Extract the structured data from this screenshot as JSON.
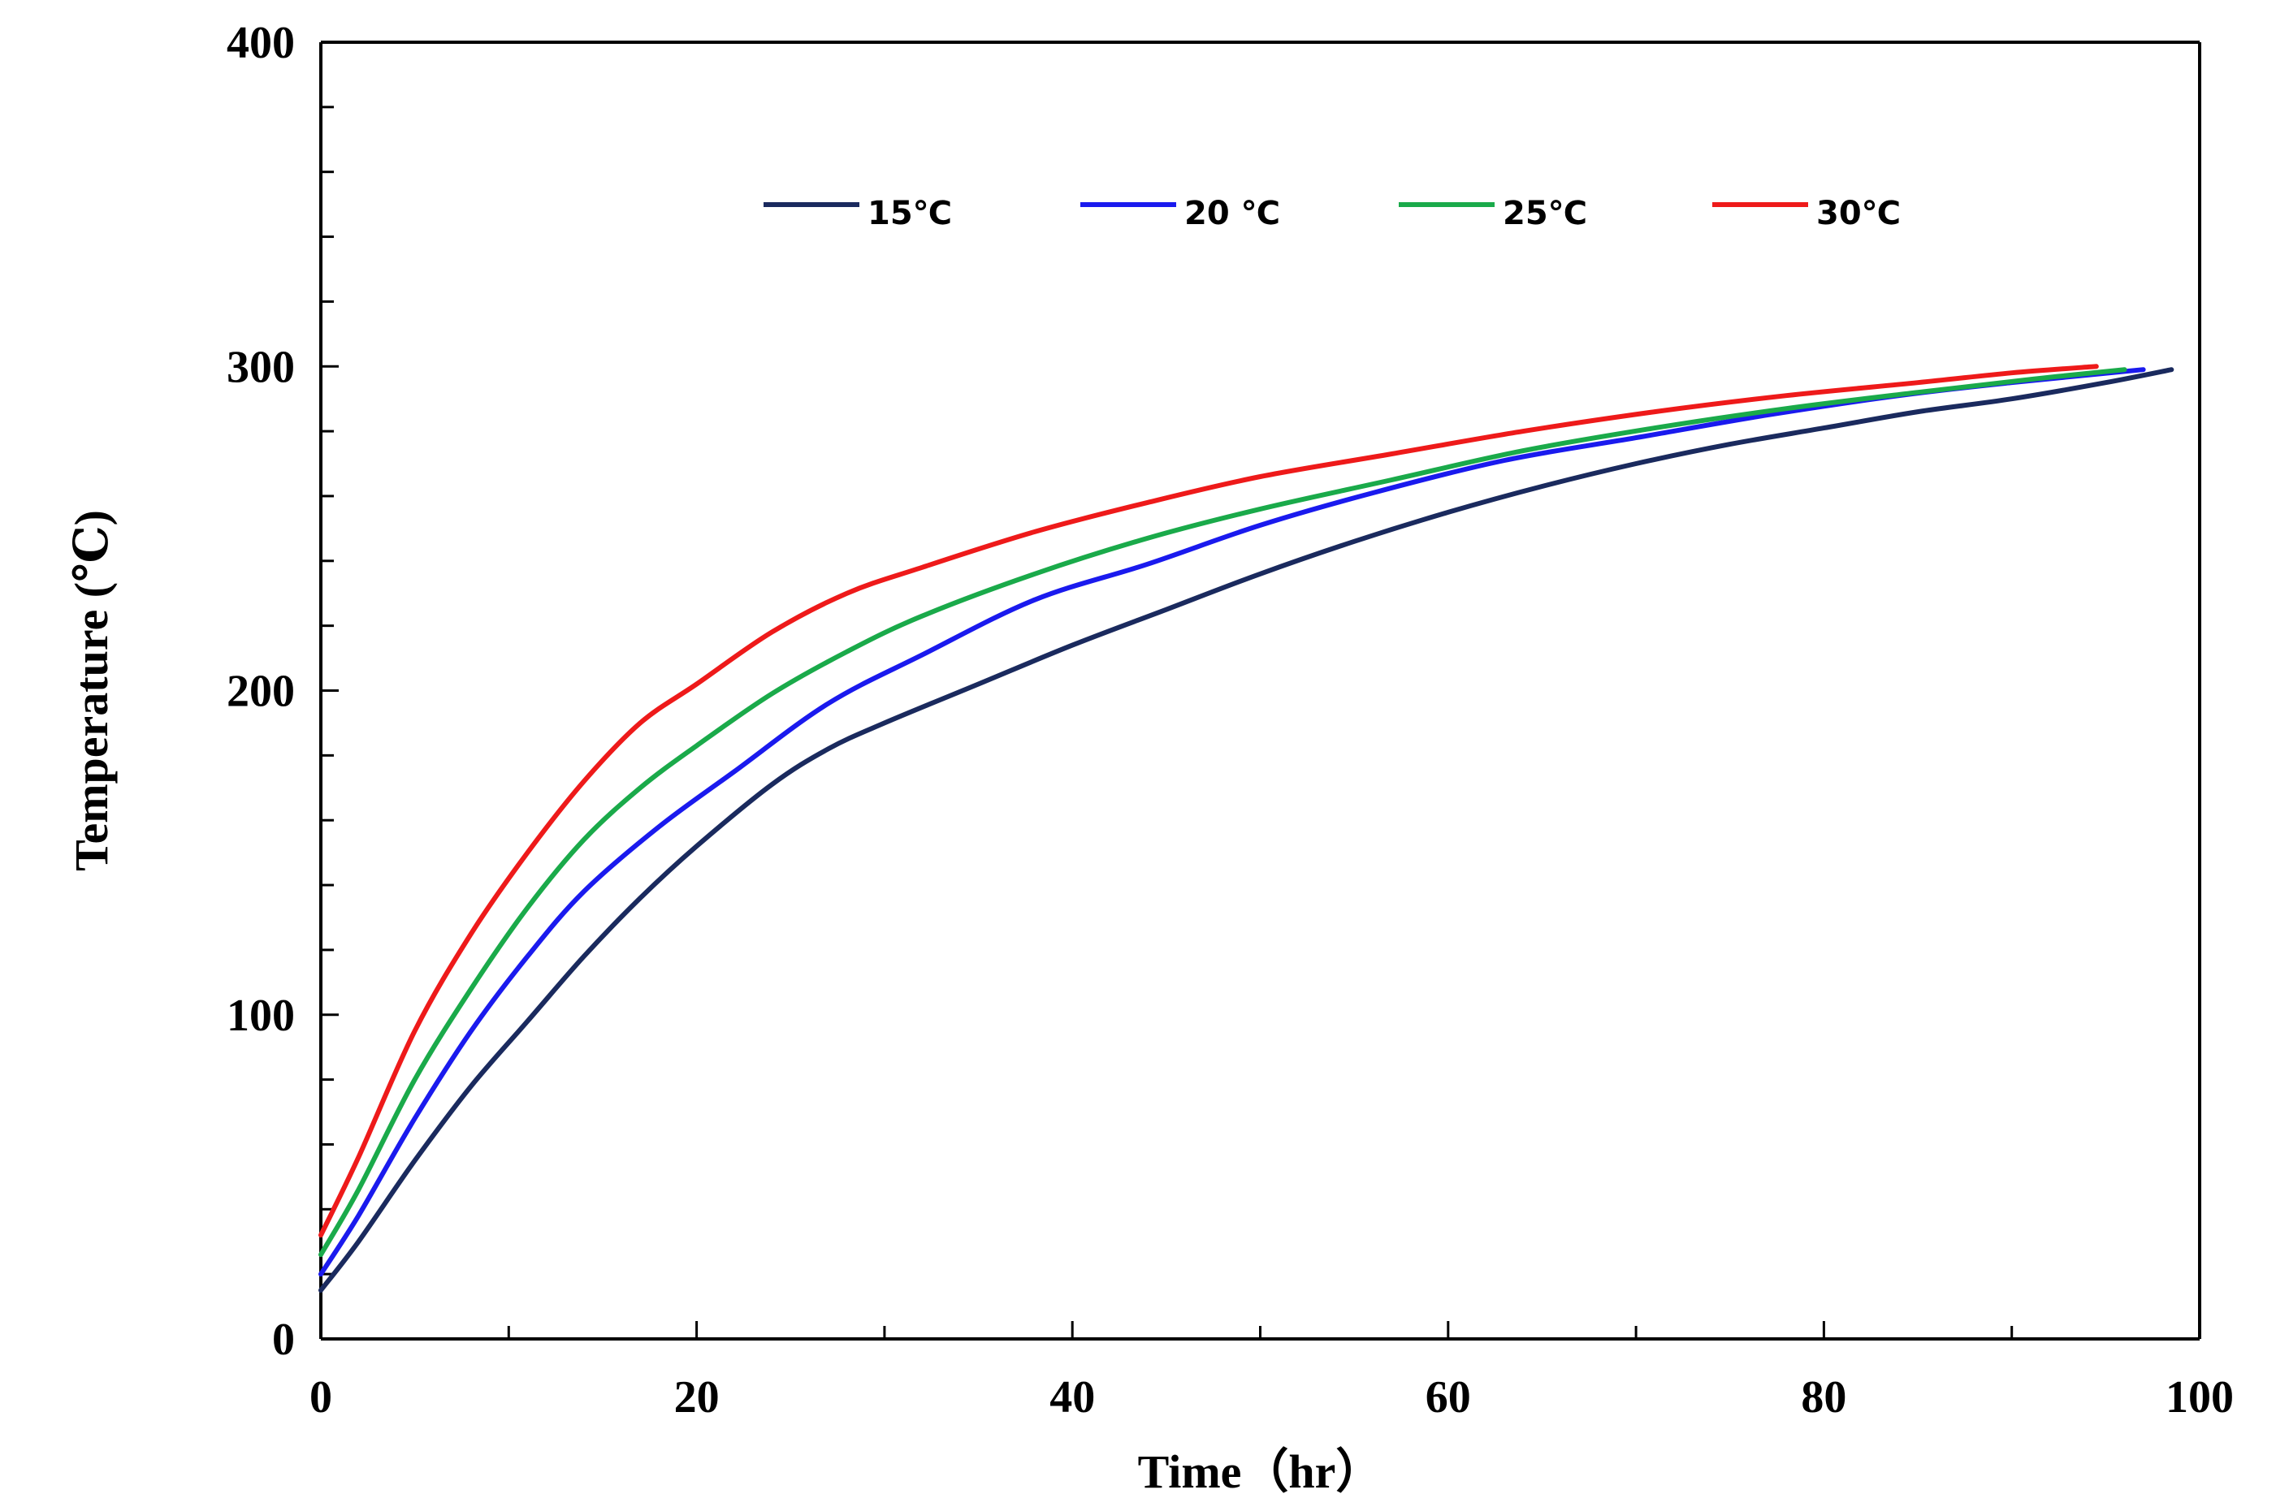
{
  "chart_data": {
    "type": "line",
    "title": "",
    "xlabel": "Time（hr）",
    "ylabel": "Temperature (℃)",
    "xlim": [
      0,
      100
    ],
    "ylim": [
      0,
      400
    ],
    "x_ticks": [
      "0",
      "20",
      "40",
      "60",
      "80",
      "100"
    ],
    "y_ticks": [
      "0",
      "100",
      "200",
      "300",
      "400"
    ],
    "grid": false,
    "legend_position": "top",
    "series": [
      {
        "name": "15℃",
        "color": "#1a2a5e",
        "x": [
          0,
          2,
          5,
          8,
          11,
          14,
          17,
          20,
          24,
          27,
          30,
          35,
          40,
          45,
          50,
          55,
          60,
          65,
          70,
          75,
          80,
          85,
          90,
          95,
          98.5
        ],
        "values": [
          15,
          30,
          55,
          78,
          98,
          118,
          136,
          152,
          171,
          182,
          190,
          202,
          214,
          225,
          236,
          246,
          255,
          263,
          270,
          276,
          281,
          286,
          290,
          295,
          299
        ]
      },
      {
        "name": "20 ℃",
        "color": "#1a1aee",
        "x": [
          0,
          2,
          5,
          8,
          11,
          14,
          18,
          22,
          27,
          32,
          38,
          44,
          50,
          56,
          63,
          70,
          77,
          84,
          90,
          97
        ],
        "values": [
          20,
          38,
          68,
          95,
          118,
          138,
          158,
          175,
          196,
          211,
          228,
          239,
          251,
          261,
          271,
          278,
          285,
          291,
          295,
          299
        ]
      },
      {
        "name": "25℃",
        "color": "#1aaa4a",
        "x": [
          0,
          2,
          5,
          8,
          11,
          14,
          17,
          20,
          24,
          28,
          32,
          38,
          44,
          50,
          57,
          64,
          71,
          78,
          85,
          91,
          96
        ],
        "values": [
          26,
          46,
          80,
          108,
          133,
          154,
          170,
          183,
          199,
          212,
          223,
          236,
          247,
          256,
          265,
          274,
          281,
          287,
          292,
          296,
          299
        ]
      },
      {
        "name": "30℃",
        "color": "#ee1a1a",
        "x": [
          0,
          2,
          5,
          8,
          11,
          14,
          17,
          20,
          24,
          28,
          32,
          38,
          44,
          50,
          57,
          64,
          71,
          78,
          85,
          90,
          94.5
        ],
        "values": [
          32,
          56,
          95,
          125,
          150,
          172,
          190,
          202,
          218,
          230,
          238,
          249,
          258,
          266,
          273,
          280,
          286,
          291,
          295,
          298,
          300
        ]
      }
    ]
  }
}
